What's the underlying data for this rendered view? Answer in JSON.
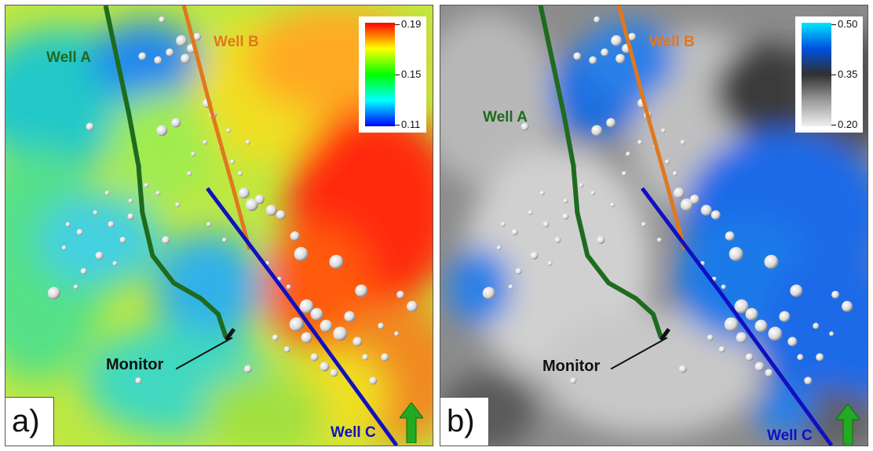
{
  "panels": [
    {
      "id": "a",
      "label": "a)",
      "colorbar": {
        "max": "0.19",
        "mid": "0.15",
        "min": "0.11",
        "colors": [
          "#ff0000",
          "#ffff00",
          "#00ff00",
          "#00ffff",
          "#0000ff"
        ]
      },
      "wells": {
        "a": "Well A",
        "b": "Well B",
        "c": "Well C"
      },
      "monitor": "Monitor"
    },
    {
      "id": "b",
      "label": "b)",
      "colorbar": {
        "max": "0.50",
        "mid": "0.35",
        "min": "0.20",
        "colors": [
          "#00e5ff",
          "#0050e0",
          "#303030",
          "#9a9a9a",
          "#f0f0f0"
        ]
      },
      "wells": {
        "a": "Well A",
        "b": "Well B",
        "c": "Well C"
      },
      "monitor": "Monitor"
    }
  ],
  "colors": {
    "well_a": "#1e6b1e",
    "well_b": "#e0781e",
    "well_c": "#1010c0",
    "north_arrow": "#22aa22"
  },
  "icons": {
    "north": "north-arrow-icon"
  }
}
